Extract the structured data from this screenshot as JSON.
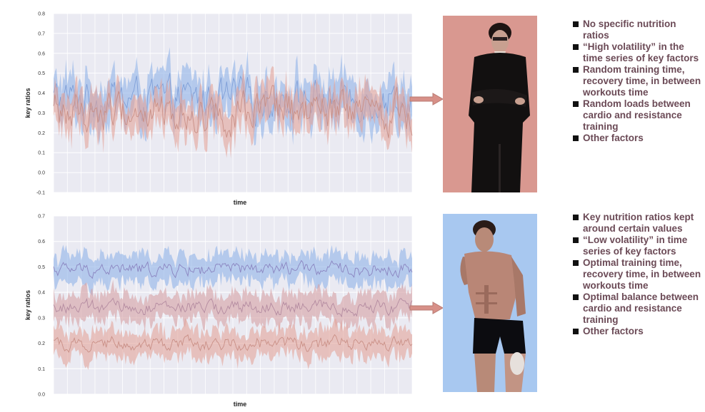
{
  "chart_data": [
    {
      "type": "line",
      "title": "",
      "xlabel": "time",
      "ylabel": "key ratios",
      "ylim": [
        -0.1,
        0.8
      ],
      "yticks": [
        "0.8",
        "0.7",
        "0.6",
        "0.5",
        "0.4",
        "0.3",
        "0.2",
        "0.1",
        "0.0",
        "-0.1"
      ],
      "grid": true,
      "series": [
        {
          "color": "#7f9fd8",
          "band_color": "#8fb2e8",
          "level": 0.37,
          "band": 0.09,
          "noise": 0.07
        },
        {
          "color": "#c98f86",
          "band_color": "#e3a39a",
          "level": 0.3,
          "band": 0.08,
          "noise": 0.07
        }
      ]
    },
    {
      "type": "line",
      "title": "",
      "xlabel": "time",
      "ylabel": "key ratios",
      "ylim": [
        0.0,
        0.7
      ],
      "yticks": [
        "0.7",
        "0.6",
        "0.5",
        "0.4",
        "0.3",
        "0.2",
        "0.1",
        "0.0"
      ],
      "grid": true,
      "series": [
        {
          "color": "#8a84c0",
          "band_color": "#8fb2e8",
          "level": 0.49,
          "band": 0.05,
          "noise": 0.02
        },
        {
          "color": "#b48ba0",
          "band_color": "#d5a0a4",
          "level": 0.34,
          "band": 0.05,
          "noise": 0.02
        },
        {
          "color": "#c98f86",
          "band_color": "#e3a39a",
          "level": 0.2,
          "band": 0.05,
          "noise": 0.02
        }
      ]
    }
  ],
  "top_panel": {
    "bullets": [
      "No specific nutrition ratios",
      "“High volatility” in the time series of key factors",
      "Random training time, recovery time, in between workouts time",
      "Random loads between cardio and resistance training",
      "Other factors"
    ]
  },
  "bottom_panel": {
    "bullets": [
      "Key nutrition ratios kept around certain values",
      "“Low volatility” in time series of key factors",
      "Optimal training time, recovery time, in between workouts time",
      "Optimal balance between cardio and resistance training",
      "Other factors"
    ]
  },
  "colors": {
    "plot_bg": "#eaeaf2",
    "grid": "#ffffff",
    "arrow": "#d79088",
    "bullet_text": "#6b4a56",
    "photo_top_bg": "#d99890",
    "photo_bottom_bg": "#a8c8f0"
  },
  "icons": {
    "top_photo": "man-in-suit-photo",
    "bottom_photo": "shirtless-athlete-photo",
    "bullet": "black-square-icon"
  }
}
